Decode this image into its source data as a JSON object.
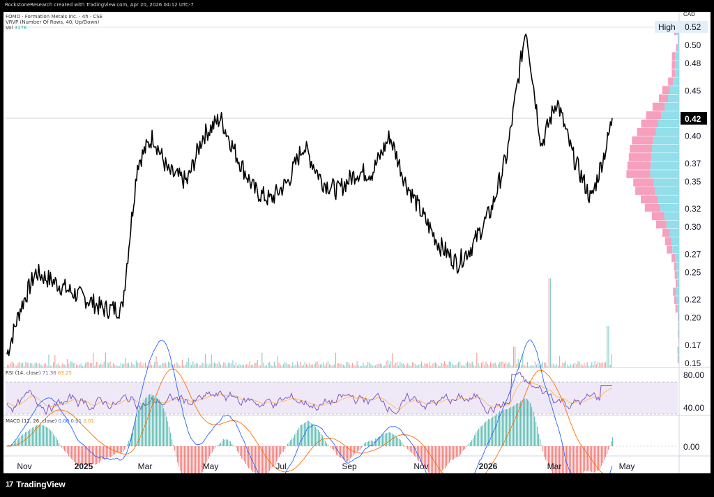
{
  "header": {
    "title": "RockstoneResearch created with TradingView.com, Apr 20, 2026 04:12 UTC-7"
  },
  "legend": {
    "symbol_line": "FOMO · Formation Metals Inc. · 4h · CSE",
    "vrvp_line": "VRVP (Number Of Rows, 40, Up/Down)",
    "vol_label": "Vol",
    "vol_value": "317K",
    "rsi_label": "RSI (14, close)",
    "rsi_value1": "71.36",
    "rsi_value2": "63.25",
    "macd_label": "MACD (12, 26, close)",
    "macd_value1": "0.00",
    "macd_value2": "0.01",
    "macd_value3": "0.01"
  },
  "currency": "CAD",
  "high_label": "High",
  "high_value": "0.52",
  "last_price": "0.42",
  "price_axis": [
    "0.52",
    "0.50",
    "0.48",
    "0.45",
    "0.42",
    "0.40",
    "0.37",
    "0.35",
    "0.32",
    "0.30",
    "0.27",
    "0.25",
    "0.22",
    "0.20",
    "0.17",
    "0.15"
  ],
  "rsi_axis": [
    "80.00",
    "40.00"
  ],
  "macd_axis": [
    "0.00"
  ],
  "time_axis": [
    {
      "label": "Nov",
      "bold": false
    },
    {
      "label": "2025",
      "bold": true
    },
    {
      "label": "Mar",
      "bold": false
    },
    {
      "label": "May",
      "bold": false
    },
    {
      "label": "Jul",
      "bold": false
    },
    {
      "label": "Sep",
      "bold": false
    },
    {
      "label": "Nov",
      "bold": false
    },
    {
      "label": "2026",
      "bold": true
    },
    {
      "label": "Mar",
      "bold": false
    },
    {
      "label": "May",
      "bold": false
    }
  ],
  "footer": {
    "brand": "TradingView",
    "logo_glyph": "17"
  },
  "colors": {
    "price_line": "#000000",
    "volume_up": "#26a69a",
    "volume_down": "#ef5350",
    "vrvp_up": "#7fd8e6",
    "vrvp_down": "#f48fb1",
    "rsi_line": "#7e57c2",
    "rsi_ma": "#ffb74d",
    "rsi_band": "#ede7f6",
    "macd_line": "#2962ff",
    "signal_line": "#ff6d00"
  },
  "chart_data": {
    "type": "line",
    "x": [
      "2024-10-20",
      "2024-11-01",
      "2024-11-15",
      "2024-12-01",
      "2024-12-15",
      "2025-01-01",
      "2025-01-15",
      "2025-02-01",
      "2025-02-15",
      "2025-03-01",
      "2025-03-15",
      "2025-04-01",
      "2025-04-15",
      "2025-05-01",
      "2025-05-15",
      "2025-06-01",
      "2025-06-15",
      "2025-07-01",
      "2025-07-15",
      "2025-08-01",
      "2025-08-15",
      "2025-09-01",
      "2025-09-15",
      "2025-10-01",
      "2025-10-15",
      "2025-11-01",
      "2025-11-15",
      "2025-12-01",
      "2025-12-15",
      "2026-01-01",
      "2026-01-15",
      "2026-02-01",
      "2026-02-15",
      "2026-03-01",
      "2026-03-15",
      "2026-04-01",
      "2026-04-15",
      "2026-04-20"
    ],
    "series": [
      {
        "values": [
          0.16,
          0.21,
          0.25,
          0.24,
          0.23,
          0.22,
          0.21,
          0.21,
          0.37,
          0.4,
          0.36,
          0.35,
          0.4,
          0.42,
          0.38,
          0.34,
          0.33,
          0.35,
          0.39,
          0.35,
          0.34,
          0.36,
          0.36,
          0.4,
          0.35,
          0.31,
          0.28,
          0.26,
          0.28,
          0.32,
          0.38,
          0.52,
          0.39,
          0.44,
          0.38,
          0.33,
          0.39,
          0.42
        ]
      }
    ],
    "ylim": [
      0.15,
      0.52
    ],
    "y_scale": "linear",
    "grid": false
  }
}
